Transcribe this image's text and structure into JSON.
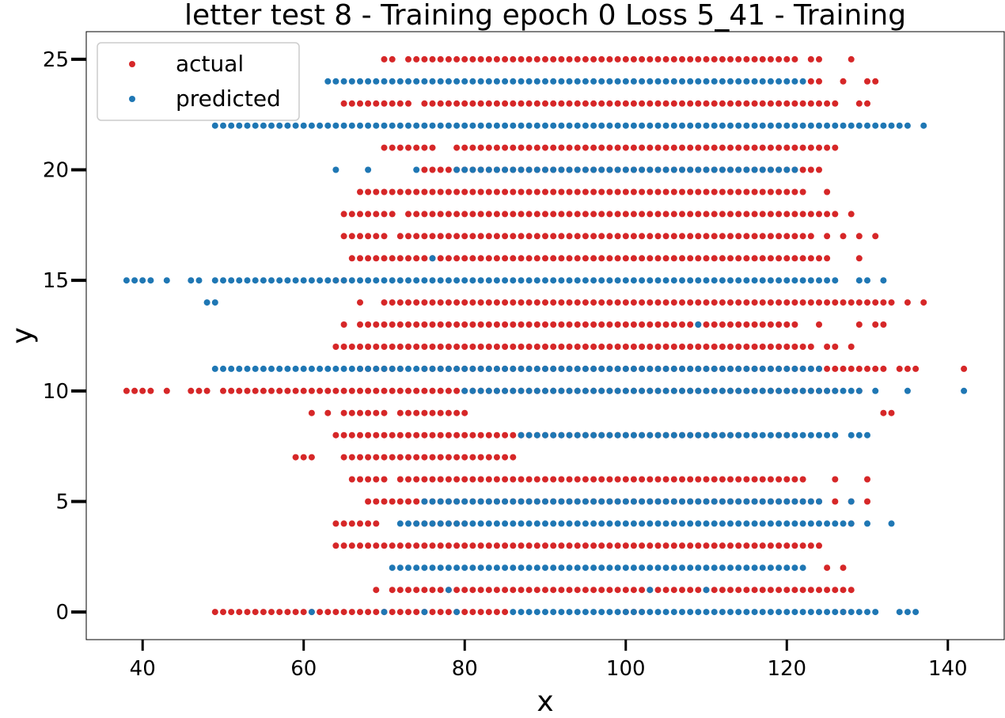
{
  "chart_data": {
    "type": "scatter",
    "title": "letter test 8 - Training epoch 0 Loss 5_41 - Training",
    "xlabel": "x",
    "ylabel": "y",
    "xlim": [
      33,
      147
    ],
    "ylim": [
      -1.25,
      26.25
    ],
    "xticks": [
      40,
      60,
      80,
      100,
      120,
      140
    ],
    "yticks": [
      0,
      5,
      10,
      15,
      20,
      25
    ],
    "grid": false,
    "legend_position": "top-left",
    "series": [
      {
        "name": "actual",
        "color": "#d62728",
        "rows": [
          {
            "y": 25,
            "ranges": [
              [
                70,
                71
              ],
              [
                73,
                121
              ]
            ],
            "points": [
              123,
              124,
              128
            ]
          },
          {
            "y": 24,
            "ranges": [],
            "points": [
              123,
              124,
              127,
              130,
              131
            ]
          },
          {
            "y": 23,
            "ranges": [
              [
                65,
                71
              ],
              [
                75,
                125
              ]
            ],
            "points": [
              72,
              73,
              126,
              129,
              130
            ]
          },
          {
            "y": 21,
            "ranges": [
              [
                70,
                76
              ],
              [
                79,
                126
              ]
            ],
            "points": []
          },
          {
            "y": 20,
            "ranges": [
              [
                75,
                124
              ]
            ],
            "points": []
          },
          {
            "y": 19,
            "ranges": [
              [
                67,
                122
              ]
            ],
            "points": [
              125
            ]
          },
          {
            "y": 18,
            "ranges": [
              [
                65,
                71
              ],
              [
                73,
                126
              ]
            ],
            "points": [
              128
            ]
          },
          {
            "y": 17,
            "ranges": [
              [
                65,
                70
              ],
              [
                72,
                123
              ]
            ],
            "points": [
              125,
              127,
              129,
              131
            ]
          },
          {
            "y": 16,
            "ranges": [
              [
                66,
                125
              ]
            ],
            "points": [
              129
            ]
          },
          {
            "y": 15,
            "ranges": [],
            "points": [
              64,
              65
            ]
          },
          {
            "y": 14,
            "ranges": [
              [
                70,
                133
              ]
            ],
            "points": [
              67,
              128,
              130,
              131,
              132,
              133,
              135,
              137
            ]
          },
          {
            "y": 13,
            "ranges": [
              [
                67,
                121
              ]
            ],
            "points": [
              65,
              124,
              129,
              131,
              132
            ]
          },
          {
            "y": 12,
            "ranges": [
              [
                64,
                123
              ]
            ],
            "points": [
              125,
              126,
              128
            ]
          },
          {
            "y": 11,
            "ranges": [
              [
                75,
                130
              ]
            ],
            "points": [
              67,
              68,
              69,
              70,
              71,
              72,
              131,
              132,
              134,
              135,
              136,
              142
            ]
          },
          {
            "y": 10,
            "ranges": [
              [
                38,
                41
              ],
              [
                46,
                48
              ],
              [
                50,
                124
              ]
            ],
            "points": [
              43,
              125,
              126,
              129
            ]
          },
          {
            "y": 9,
            "ranges": [
              [
                65,
                70
              ],
              [
                72,
                80
              ]
            ],
            "points": [
              61,
              63,
              132,
              133
            ]
          },
          {
            "y": 8,
            "ranges": [
              [
                64,
                114
              ]
            ],
            "points": [
              116,
              119,
              120
            ]
          },
          {
            "y": 7,
            "ranges": [
              [
                65,
                86
              ],
              [
                59,
                61
              ]
            ],
            "points": []
          },
          {
            "y": 6,
            "ranges": [
              [
                66,
                70
              ],
              [
                72,
                122
              ]
            ],
            "points": [
              126,
              130
            ]
          },
          {
            "y": 5,
            "ranges": [
              [
                68,
                124
              ]
            ],
            "points": [
              126,
              128,
              130
            ]
          },
          {
            "y": 4,
            "ranges": [
              [
                64,
                69
              ],
              [
                74,
                80
              ]
            ],
            "points": [
              128
            ]
          },
          {
            "y": 3,
            "ranges": [
              [
                64,
                124
              ]
            ],
            "points": []
          },
          {
            "y": 2,
            "ranges": [],
            "points": [
              125,
              127
            ]
          },
          {
            "y": 1,
            "ranges": [
              [
                71,
                128
              ]
            ],
            "points": [
              69
            ]
          },
          {
            "y": 0,
            "ranges": [
              [
                49,
                85
              ],
              [
                100,
                102
              ]
            ],
            "points": [
              127
            ]
          }
        ]
      },
      {
        "name": "predicted",
        "color": "#1f77b4",
        "rows": [
          {
            "y": 24,
            "ranges": [
              [
                63,
                122
              ]
            ],
            "points": []
          },
          {
            "y": 22,
            "ranges": [
              [
                49,
                135
              ]
            ],
            "points": [
              137
            ]
          },
          {
            "y": 20,
            "ranges": [
              [
                79,
                121
              ]
            ],
            "points": [
              64,
              68,
              74
            ]
          },
          {
            "y": 16,
            "ranges": [],
            "points": [
              76
            ]
          },
          {
            "y": 15,
            "ranges": [
              [
                49,
                126
              ]
            ],
            "points": [
              38,
              39,
              40,
              41,
              43,
              46,
              47,
              129,
              130,
              132
            ]
          },
          {
            "y": 14,
            "ranges": [],
            "points": [
              48,
              49
            ]
          },
          {
            "y": 13,
            "ranges": [],
            "points": [
              109
            ]
          },
          {
            "y": 11,
            "ranges": [
              [
                49,
                124
              ]
            ],
            "points": []
          },
          {
            "y": 10,
            "ranges": [
              [
                80,
                129
              ]
            ],
            "points": [
              131,
              135,
              142
            ]
          },
          {
            "y": 8,
            "ranges": [
              [
                87,
                126
              ]
            ],
            "points": [
              128,
              129,
              130
            ]
          },
          {
            "y": 5,
            "ranges": [
              [
                76,
                124
              ]
            ],
            "points": [
              75,
              128
            ]
          },
          {
            "y": 4,
            "ranges": [
              [
                72,
                128
              ]
            ],
            "points": [
              130,
              133
            ]
          },
          {
            "y": 2,
            "ranges": [
              [
                71,
                122
              ]
            ],
            "points": []
          },
          {
            "y": 1,
            "ranges": [],
            "points": [
              78,
              103,
              110
            ]
          },
          {
            "y": 0,
            "ranges": [
              [
                86,
                131
              ]
            ],
            "points": [
              61,
              70,
              75,
              79,
              134,
              135,
              136
            ]
          }
        ]
      }
    ]
  }
}
